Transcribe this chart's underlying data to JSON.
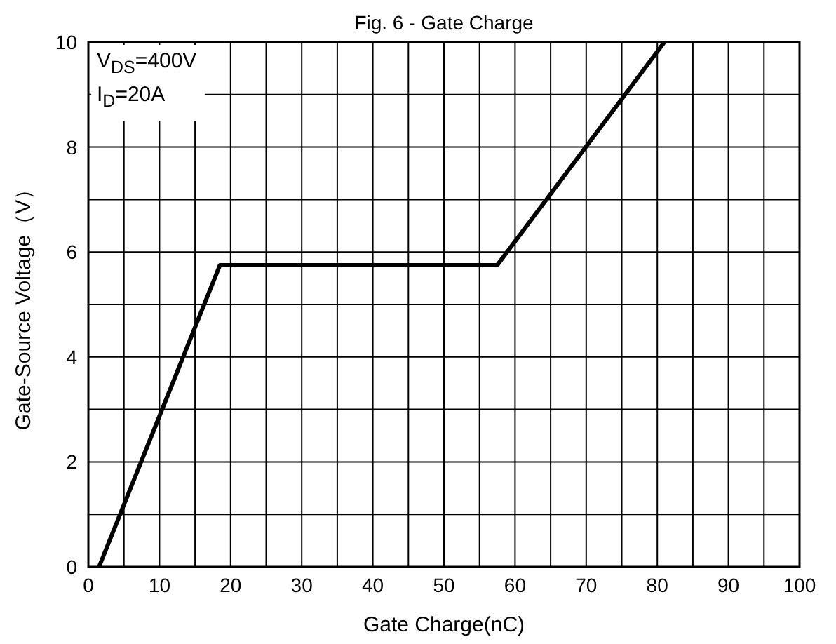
{
  "chart_data": {
    "type": "line",
    "title": "Fig. 6 - Gate Charge",
    "xlabel": "Gate Charge(nC)",
    "ylabel": "Gate-Source Voltage（V）",
    "annotations": [
      "V$_{DS}$=400V",
      "I$_{D}$=20A"
    ],
    "x": [
      1.5,
      18.5,
      57.5,
      81
    ],
    "series": [
      {
        "color": "#000000",
        "values": [
          0,
          5.75,
          5.75,
          10
        ]
      }
    ],
    "xlim": [
      0,
      100
    ],
    "xticks": [
      0,
      {
        "value": 5,
        "label": null
      },
      10,
      {
        "value": 15,
        "label": null
      },
      20,
      {
        "value": 25,
        "label": null
      },
      30,
      {
        "value": 35,
        "label": null
      },
      40,
      {
        "value": 45,
        "label": null
      },
      50,
      {
        "value": 55,
        "label": null
      },
      60,
      {
        "value": 65,
        "label": null
      },
      70,
      {
        "value": 75,
        "label": null
      },
      80,
      {
        "value": 85,
        "label": null
      },
      90,
      {
        "value": 95,
        "label": null
      },
      100
    ],
    "ylim": [
      0,
      10
    ],
    "yticks": [
      0,
      {
        "value": 1,
        "label": null
      },
      2,
      {
        "value": 3,
        "label": null
      },
      4,
      {
        "value": 5,
        "label": null
      },
      6,
      {
        "value": 7,
        "label": null
      },
      8,
      {
        "value": 9,
        "label": null
      },
      10
    ],
    "grid": true,
    "marker": "none",
    "line_style": "solid"
  }
}
